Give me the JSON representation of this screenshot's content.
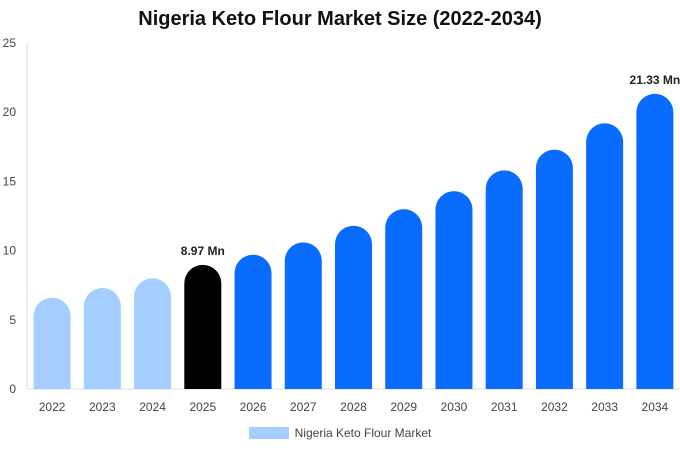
{
  "chart_data": {
    "type": "bar",
    "title": "Nigeria Keto Flour Market Size (2022-2034)",
    "xlabel": "",
    "ylabel": "",
    "categories": [
      "2022",
      "2023",
      "2024",
      "2025",
      "2026",
      "2027",
      "2028",
      "2029",
      "2030",
      "2031",
      "2032",
      "2033",
      "2034"
    ],
    "series": [
      {
        "name": "Nigeria Keto Flour Market",
        "values": [
          6.6,
          7.3,
          8.0,
          8.97,
          9.7,
          10.6,
          11.8,
          13.0,
          14.3,
          15.8,
          17.3,
          19.2,
          21.33
        ]
      }
    ],
    "ylim": [
      0,
      25
    ],
    "yticks": [
      0,
      5,
      10,
      15,
      20,
      25
    ],
    "data_labels": [
      {
        "category": "2025",
        "text": "8.97 Mn"
      },
      {
        "category": "2034",
        "text": "21.33 Mn"
      }
    ],
    "bar_colors": {
      "historical": "#a3ceff",
      "current": "#000000",
      "forecast": "#0a6cff"
    },
    "historical_categories": [
      "2022",
      "2023",
      "2024"
    ],
    "current_category": "2025",
    "grid": false,
    "legend_position": "bottom-center"
  }
}
